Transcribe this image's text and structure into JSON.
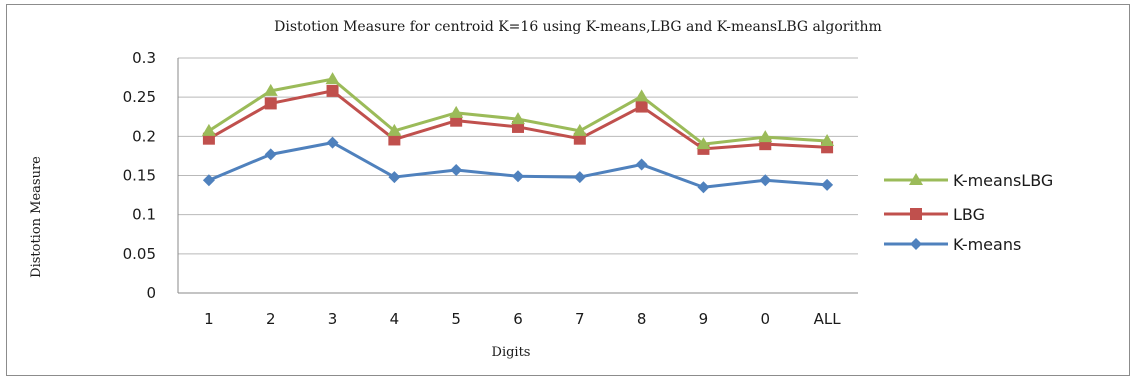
{
  "chart_data": {
    "type": "line",
    "title": "Distotion Measure for centroid K=16 using K-means,LBG and K-meansLBG algorithm",
    "xlabel": "Digits",
    "ylabel": "Distotion Measure",
    "categories": [
      "1",
      "2",
      "3",
      "4",
      "5",
      "6",
      "7",
      "8",
      "9",
      "0",
      "ALL"
    ],
    "ylim": [
      0,
      0.3
    ],
    "yticks": [
      "0",
      "0.05",
      "0.1",
      "0.15",
      "0.2",
      "0.25",
      "0.3"
    ],
    "grid": true,
    "legend_position": "right",
    "series": [
      {
        "name": "K-meansLBG",
        "color": "#9bbb59",
        "marker": "triangle",
        "values": [
          0.207,
          0.258,
          0.273,
          0.207,
          0.23,
          0.222,
          0.207,
          0.251,
          0.19,
          0.199,
          0.194
        ]
      },
      {
        "name": "LBG",
        "color": "#c0504d",
        "marker": "square",
        "values": [
          0.197,
          0.242,
          0.258,
          0.196,
          0.22,
          0.212,
          0.197,
          0.238,
          0.184,
          0.19,
          0.186
        ]
      },
      {
        "name": "K-means",
        "color": "#4f81bd",
        "marker": "diamond",
        "values": [
          0.144,
          0.177,
          0.192,
          0.148,
          0.157,
          0.149,
          0.148,
          0.164,
          0.135,
          0.144,
          0.138
        ]
      }
    ]
  }
}
